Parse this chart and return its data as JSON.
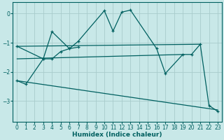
{
  "xlabel": "Humidex (Indice chaleur)",
  "background_color": "#c8e8e8",
  "grid_color": "#a8cccc",
  "line_color": "#006060",
  "ylim": [
    -3.7,
    0.4
  ],
  "xlim": [
    -0.5,
    23.5
  ],
  "yticks": [
    0,
    -1,
    -2,
    -3
  ],
  "line1_x": [
    0,
    1,
    3,
    4,
    6,
    7,
    10,
    11,
    12,
    13,
    16,
    17,
    19,
    20,
    21,
    22,
    23
  ],
  "line1_y": [
    -2.3,
    -2.42,
    -1.55,
    -0.62,
    -1.2,
    -0.95,
    0.1,
    -0.6,
    0.05,
    0.12,
    -1.2,
    -2.05,
    -1.4,
    -1.4,
    -1.05,
    -3.15,
    -3.35
  ],
  "line2_x": [
    0,
    3,
    4,
    5,
    6,
    7
  ],
  "line2_y": [
    -1.12,
    -1.55,
    -1.55,
    -1.3,
    -1.2,
    -1.15
  ],
  "line3_x": [
    0,
    21
  ],
  "line3_y": [
    -1.12,
    -1.05
  ],
  "line4_x": [
    0,
    23
  ],
  "line4_y": [
    -2.3,
    -3.3
  ],
  "line5_x": [
    0,
    19
  ],
  "line5_y": [
    -1.55,
    -1.4
  ]
}
